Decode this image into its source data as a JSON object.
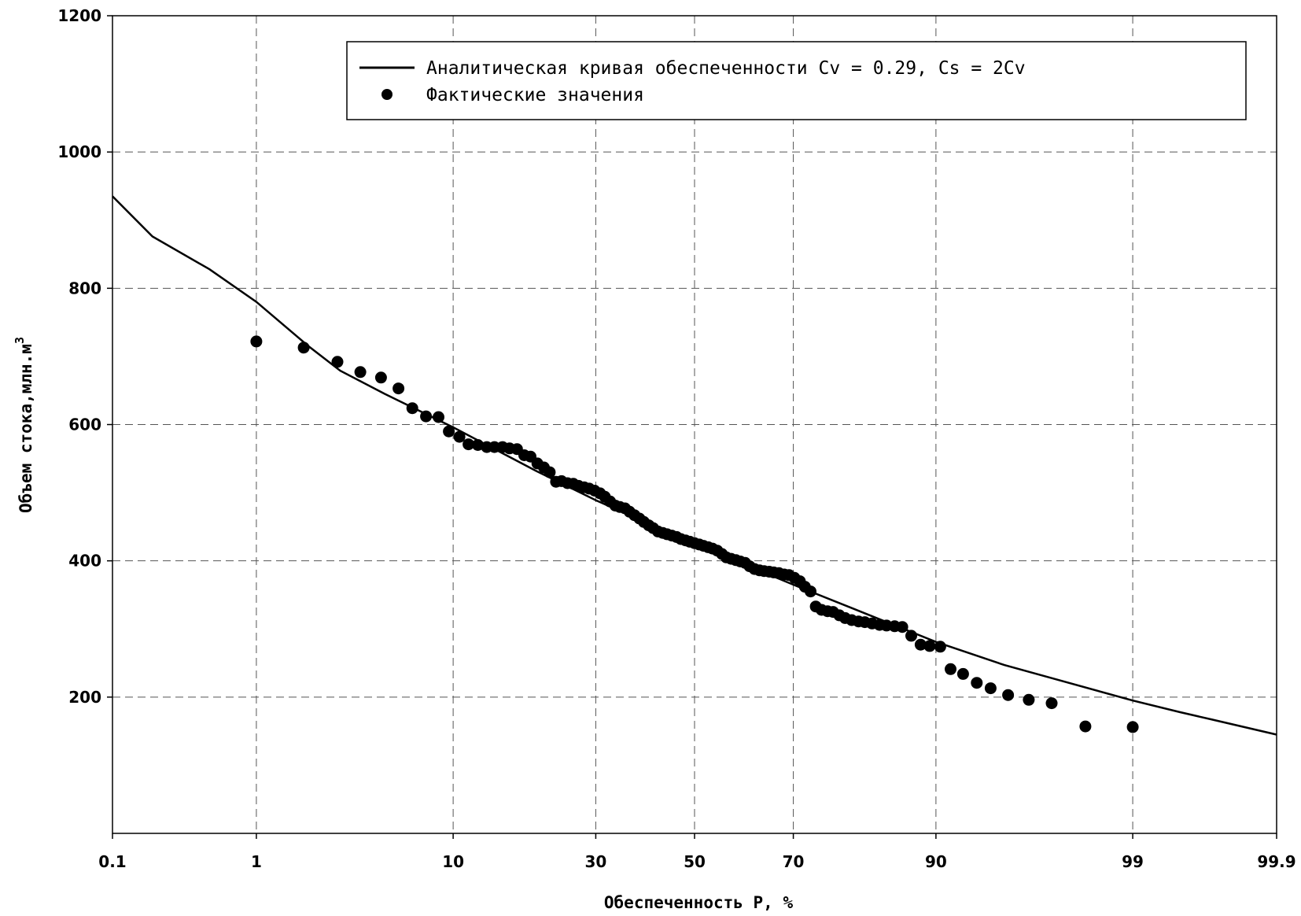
{
  "chart_data": {
    "type": "line",
    "title": "",
    "xlabel": "Обеспеченность P, %",
    "ylabel": "Объем стока,млн.м",
    "ylabel_superscript": "3",
    "x_scale": "probability (normal)",
    "x_range": [
      0.1,
      99.9
    ],
    "ylim": [
      0,
      1200
    ],
    "x_ticks": [
      0.1,
      1,
      10,
      30,
      50,
      70,
      90,
      99,
      99.9
    ],
    "x_tick_labels": [
      "0.1",
      "1",
      "10",
      "30",
      "50",
      "70",
      "90",
      "99",
      "99.9"
    ],
    "y_ticks": [
      200,
      400,
      600,
      800,
      1000,
      1200
    ],
    "y_tick_labels": [
      "200",
      "400",
      "600",
      "800",
      "1000",
      "1200"
    ],
    "grid": true,
    "legend_position": "top-right",
    "series": [
      {
        "name": "Аналитическая кривая обеспеченности Cv = 0.29, Cs = 2Cv",
        "type": "line",
        "color": "#000000",
        "x": [
          0.1,
          0.2,
          0.5,
          1,
          2,
          3,
          5,
          10,
          20,
          30,
          40,
          50,
          60,
          70,
          80,
          90,
          95,
          97,
          99,
          99.5,
          99.7,
          99.9
        ],
        "y": [
          935,
          876,
          828,
          780,
          716,
          679,
          645,
          596,
          532,
          489,
          455,
          425,
          396,
          365,
          330,
          281,
          247,
          229,
          195,
          178,
          167,
          145
        ]
      },
      {
        "name": "Фактические значения",
        "type": "scatter",
        "color": "#000000",
        "x": [
          1.0,
          1.9,
          2.9,
          3.8,
          4.8,
          5.8,
          6.7,
          7.7,
          8.7,
          9.6,
          10.6,
          11.5,
          12.5,
          13.5,
          14.4,
          15.4,
          16.3,
          17.3,
          18.3,
          19.2,
          20.2,
          21.2,
          22.1,
          23.1,
          24.0,
          25.0,
          26.0,
          26.9,
          27.9,
          28.8,
          29.8,
          30.8,
          31.7,
          32.7,
          33.7,
          34.6,
          35.6,
          36.5,
          37.5,
          38.5,
          39.4,
          40.4,
          41.3,
          42.3,
          43.3,
          44.2,
          45.2,
          46.2,
          47.1,
          48.1,
          49.0,
          50.0,
          51.0,
          51.9,
          52.9,
          53.8,
          54.8,
          55.8,
          56.7,
          57.7,
          58.7,
          59.6,
          60.6,
          61.5,
          62.5,
          63.5,
          64.4,
          65.4,
          66.3,
          67.3,
          68.3,
          69.2,
          70.2,
          71.2,
          72.1,
          73.1,
          74.0,
          75.0,
          76.0,
          76.9,
          77.9,
          78.8,
          79.8,
          80.8,
          81.7,
          82.7,
          83.7,
          84.6,
          85.6,
          86.5,
          87.5,
          88.5,
          89.4,
          90.4,
          91.3,
          92.3,
          93.3,
          94.2,
          95.2,
          96.2,
          97.1,
          98.1,
          99.0
        ],
        "y": [
          722,
          713,
          692,
          677,
          669,
          653,
          624,
          612,
          611,
          590,
          582,
          571,
          570,
          567,
          567,
          567,
          565,
          564,
          555,
          553,
          543,
          537,
          530,
          516,
          517,
          514,
          513,
          510,
          508,
          506,
          503,
          499,
          494,
          487,
          481,
          479,
          477,
          472,
          467,
          462,
          457,
          452,
          448,
          443,
          441,
          439,
          437,
          435,
          432,
          430,
          428,
          426,
          424,
          422,
          420,
          418,
          415,
          410,
          405,
          403,
          401,
          399,
          397,
          392,
          388,
          386,
          385,
          384,
          383,
          382,
          380,
          379,
          375,
          370,
          362,
          355,
          333,
          328,
          326,
          325,
          320,
          316,
          313,
          311,
          310,
          308,
          306,
          305,
          304,
          303,
          290,
          277,
          275,
          274,
          241,
          234,
          221,
          213,
          203,
          196,
          191,
          157,
          156
        ]
      }
    ]
  }
}
